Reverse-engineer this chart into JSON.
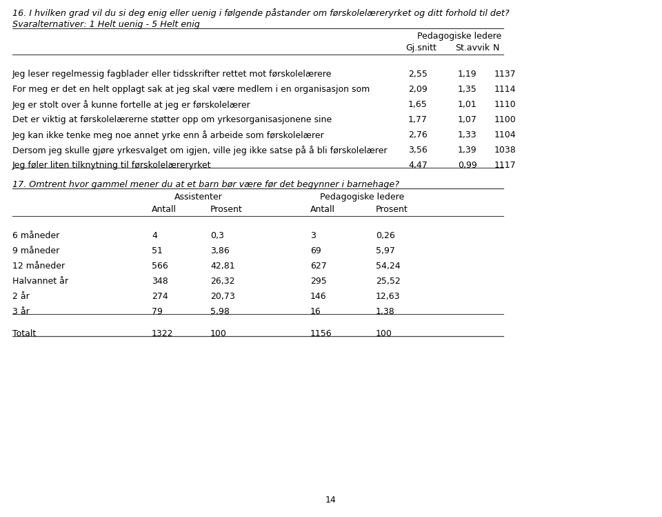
{
  "title16": "16. I hvilken grad vil du si deg enig eller uenig i følgende påstander om førskolelæreryrket og ditt forhold til det?",
  "subtitle16": "Svaralternativer: 1 Helt uenig - 5 Helt enig",
  "rows16": [
    [
      "Jeg leser regelmessig fagblader eller tidsskrifter rettet mot førskolelærere",
      "2,55",
      "1,19",
      "1137"
    ],
    [
      "For meg er det en helt opplagt sak at jeg skal være medlem i en organisasjon som",
      "2,09",
      "1,35",
      "1114"
    ],
    [
      "Jeg er stolt over å kunne fortelle at jeg er førskolelærer",
      "1,65",
      "1,01",
      "1110"
    ],
    [
      "Det er viktig at førskolelærerne støtter opp om yrkesorganisasjonene sine",
      "1,77",
      "1,07",
      "1100"
    ],
    [
      "Jeg kan ikke tenke meg noe annet yrke enn å arbeide som førskolelærer",
      "2,76",
      "1,33",
      "1104"
    ],
    [
      "Dersom jeg skulle gjøre yrkesvalget om igjen, ville jeg ikke satse på å bli førskolelærer",
      "3,56",
      "1,39",
      "1038"
    ],
    [
      "Jeg føler liten tilknytning til førskolelæreryrket",
      "4,47",
      "0,99",
      "1117"
    ]
  ],
  "title17": "17. Omtrent hvor gammel mener du at et barn bør være før det begynner i barnehage?",
  "rows17": [
    [
      "6 måneder",
      "4",
      "0,3",
      "3",
      "0,26"
    ],
    [
      "9 måneder",
      "51",
      "3,86",
      "69",
      "5,97"
    ],
    [
      "12 måneder",
      "566",
      "42,81",
      "627",
      "54,24"
    ],
    [
      "Halvannet år",
      "348",
      "26,32",
      "295",
      "25,52"
    ],
    [
      "2 år",
      "274",
      "20,73",
      "146",
      "12,63"
    ],
    [
      "3 år",
      "79",
      "5,98",
      "16",
      "1,38"
    ]
  ],
  "total17": [
    "Totalt",
    "1322",
    "100",
    "1156",
    "100"
  ],
  "page_number": "14",
  "bg_color": "#ffffff",
  "text_color": "#000000",
  "font_size_title": 9.2,
  "font_size_body": 9.0
}
